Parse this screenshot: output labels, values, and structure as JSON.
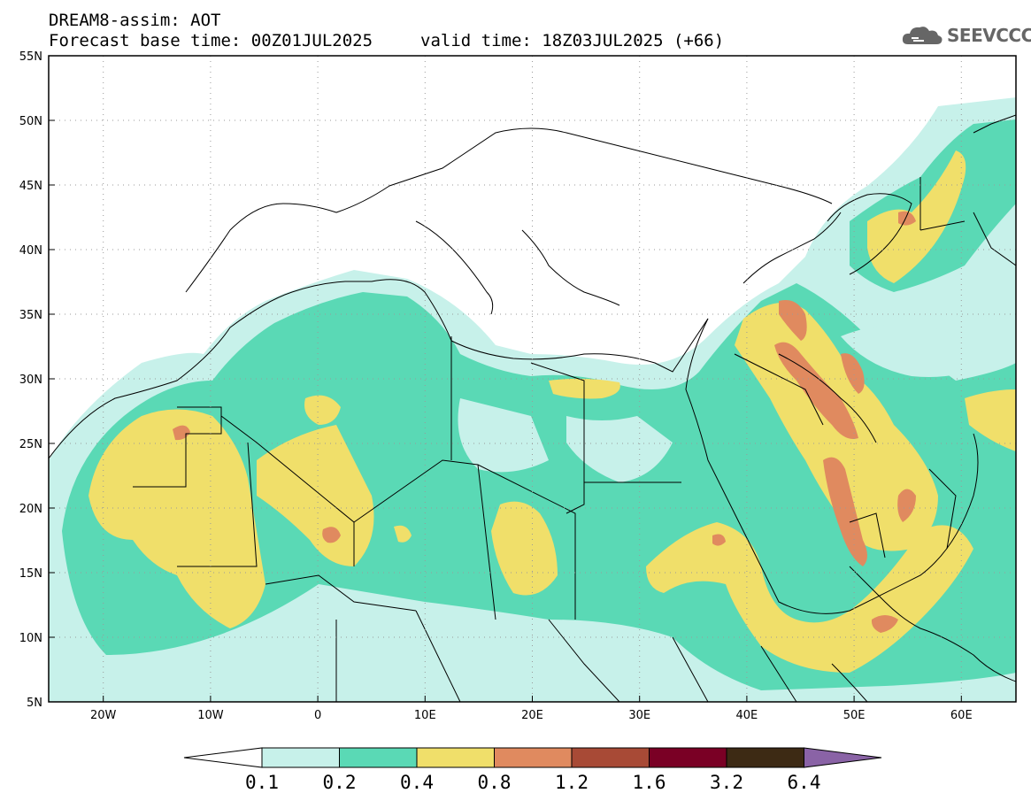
{
  "header": {
    "model": "DREAM8-assim: AOT",
    "base": "Forecast base time: 00Z01JUL2025",
    "valid": "valid time: 18Z03JUL2025 (+66)"
  },
  "logo": {
    "text": "SEEVCCC",
    "icon": "cloud-logo-icon"
  },
  "axes": {
    "lon_labels": [
      "20W",
      "10W",
      "0",
      "10E",
      "20E",
      "30E",
      "40E",
      "50E",
      "60E"
    ],
    "lat_labels": [
      "55N",
      "50N",
      "45N",
      "40N",
      "35N",
      "30N",
      "25N",
      "20N",
      "15N",
      "10N",
      "5N"
    ]
  },
  "colorbar": {
    "levels": [
      "0.1",
      "0.2",
      "0.4",
      "0.8",
      "1.2",
      "1.6",
      "3.2",
      "6.4"
    ],
    "colors": [
      "#c7f1ea",
      "#5ad9b5",
      "#f0df6a",
      "#e08a5f",
      "#a84a36",
      "#7a0025",
      "#3d2a14",
      "#8a63a6"
    ]
  },
  "colors": {
    "very_low": "#c7f1ea",
    "low": "#5ad9b5",
    "mid": "#f0df6a",
    "high": "#e08a5f",
    "land_line": "#000000"
  }
}
